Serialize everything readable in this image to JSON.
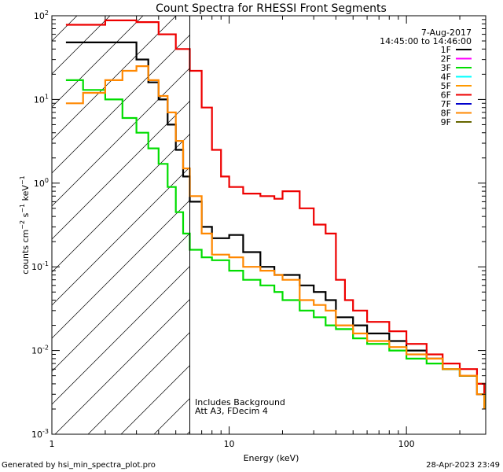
{
  "chart_data": {
    "type": "line",
    "title": "Count Spectra for RHESSI Front Segments",
    "xlabel": "Energy (keV)",
    "ylabel": "counts cm-2 s-1 keV-1",
    "xscale": "log",
    "yscale": "log",
    "xlim": [
      1,
      280
    ],
    "ylim": [
      0.001,
      100
    ],
    "x_ticks": [
      {
        "value": 1,
        "label": "1"
      },
      {
        "value": 10,
        "label": "10"
      },
      {
        "value": 100,
        "label": "100"
      }
    ],
    "y_ticks": [
      {
        "value": 100,
        "label_base": "10",
        "label_exp": "2"
      },
      {
        "value": 10,
        "label_base": "10",
        "label_exp": "1"
      },
      {
        "value": 1,
        "label_base": "10",
        "label_exp": "0"
      },
      {
        "value": 0.1,
        "label_base": "10",
        "label_exp": "-1"
      },
      {
        "value": 0.01,
        "label_base": "10",
        "label_exp": "-2"
      },
      {
        "value": 0.001,
        "label_base": "10",
        "label_exp": "-3"
      }
    ],
    "shaded_region": {
      "x_min": 1,
      "x_max": 6,
      "style": "diagonal-hatch"
    },
    "vertical_line_x": 6,
    "legend_header": [
      "7-Aug-2017",
      "14:45:00 to 14:46:00"
    ],
    "legend_position": "top-right",
    "series": [
      {
        "name": "1F",
        "color": "#000000",
        "points": [
          [
            1.2,
            48
          ],
          [
            2,
            48
          ],
          [
            3,
            30
          ],
          [
            3.5,
            16
          ],
          [
            4,
            10
          ],
          [
            4.5,
            5
          ],
          [
            5,
            2.5
          ],
          [
            5.5,
            1.2
          ],
          [
            6,
            0.6
          ],
          [
            7,
            0.3
          ],
          [
            8,
            0.22
          ],
          [
            10,
            0.24
          ],
          [
            12,
            0.15
          ],
          [
            15,
            0.1
          ],
          [
            18,
            0.08
          ],
          [
            25,
            0.06
          ],
          [
            30,
            0.05
          ],
          [
            35,
            0.04
          ],
          [
            40,
            0.025
          ],
          [
            50,
            0.02
          ],
          [
            60,
            0.016
          ],
          [
            80,
            0.013
          ],
          [
            100,
            0.01
          ],
          [
            130,
            0.008
          ],
          [
            160,
            0.006
          ],
          [
            200,
            0.005
          ],
          [
            250,
            0.003
          ],
          [
            275,
            0.002
          ]
        ]
      },
      {
        "name": "2F",
        "color": "#ff00ff",
        "points": []
      },
      {
        "name": "3F",
        "color": "#00dd00",
        "points": [
          [
            1.2,
            17
          ],
          [
            1.5,
            13
          ],
          [
            2,
            10
          ],
          [
            2.5,
            6
          ],
          [
            3,
            4
          ],
          [
            3.5,
            2.6
          ],
          [
            4,
            1.7
          ],
          [
            4.5,
            0.9
          ],
          [
            5,
            0.45
          ],
          [
            5.5,
            0.25
          ],
          [
            6,
            0.16
          ],
          [
            7,
            0.13
          ],
          [
            8,
            0.12
          ],
          [
            10,
            0.09
          ],
          [
            12,
            0.07
          ],
          [
            15,
            0.06
          ],
          [
            18,
            0.05
          ],
          [
            20,
            0.04
          ],
          [
            25,
            0.03
          ],
          [
            30,
            0.025
          ],
          [
            35,
            0.02
          ],
          [
            40,
            0.018
          ],
          [
            50,
            0.014
          ],
          [
            60,
            0.012
          ],
          [
            80,
            0.01
          ],
          [
            100,
            0.008
          ],
          [
            130,
            0.007
          ],
          [
            160,
            0.006
          ],
          [
            200,
            0.005
          ],
          [
            250,
            0.004
          ],
          [
            275,
            0.002
          ]
        ]
      },
      {
        "name": "4F",
        "color": "#00ffff",
        "points": []
      },
      {
        "name": "5F",
        "color": "#ff9900",
        "points": []
      },
      {
        "name": "6F",
        "color": "#ee0000",
        "points": [
          [
            1.2,
            78
          ],
          [
            2,
            88
          ],
          [
            3,
            84
          ],
          [
            4,
            60
          ],
          [
            5,
            40
          ],
          [
            6,
            22
          ],
          [
            7,
            8
          ],
          [
            8,
            2.5
          ],
          [
            9,
            1.2
          ],
          [
            10,
            0.9
          ],
          [
            12,
            0.75
          ],
          [
            15,
            0.7
          ],
          [
            18,
            0.65
          ],
          [
            20,
            0.8
          ],
          [
            25,
            0.5
          ],
          [
            30,
            0.32
          ],
          [
            35,
            0.25
          ],
          [
            40,
            0.07
          ],
          [
            45,
            0.04
          ],
          [
            50,
            0.03
          ],
          [
            60,
            0.022
          ],
          [
            80,
            0.017
          ],
          [
            100,
            0.012
          ],
          [
            130,
            0.009
          ],
          [
            160,
            0.007
          ],
          [
            200,
            0.006
          ],
          [
            250,
            0.004
          ],
          [
            275,
            0.003
          ]
        ]
      },
      {
        "name": "7F",
        "color": "#0000cc",
        "points": []
      },
      {
        "name": "8F",
        "color": "#ff8800",
        "points": [
          [
            1.2,
            9
          ],
          [
            1.5,
            12
          ],
          [
            2,
            17
          ],
          [
            2.5,
            22
          ],
          [
            3,
            25
          ],
          [
            3.5,
            17
          ],
          [
            4,
            11
          ],
          [
            4.5,
            7
          ],
          [
            5,
            3.2
          ],
          [
            5.5,
            1.5
          ],
          [
            6,
            0.7
          ],
          [
            7,
            0.25
          ],
          [
            8,
            0.14
          ],
          [
            10,
            0.13
          ],
          [
            12,
            0.1
          ],
          [
            15,
            0.09
          ],
          [
            18,
            0.08
          ],
          [
            20,
            0.07
          ],
          [
            25,
            0.04
          ],
          [
            30,
            0.035
          ],
          [
            35,
            0.03
          ],
          [
            40,
            0.02
          ],
          [
            50,
            0.016
          ],
          [
            60,
            0.013
          ],
          [
            80,
            0.011
          ],
          [
            100,
            0.009
          ],
          [
            130,
            0.008
          ],
          [
            160,
            0.006
          ],
          [
            200,
            0.005
          ],
          [
            250,
            0.003
          ],
          [
            275,
            0.002
          ]
        ]
      },
      {
        "name": "9F",
        "color": "#666600",
        "points": []
      }
    ],
    "annotations": [
      "Includes Background",
      "Att A3, FDecim 4"
    ]
  },
  "footer_left": "Generated by hsi_min_spectra_plot.pro",
  "footer_right": "28-Apr-2023 23:49"
}
